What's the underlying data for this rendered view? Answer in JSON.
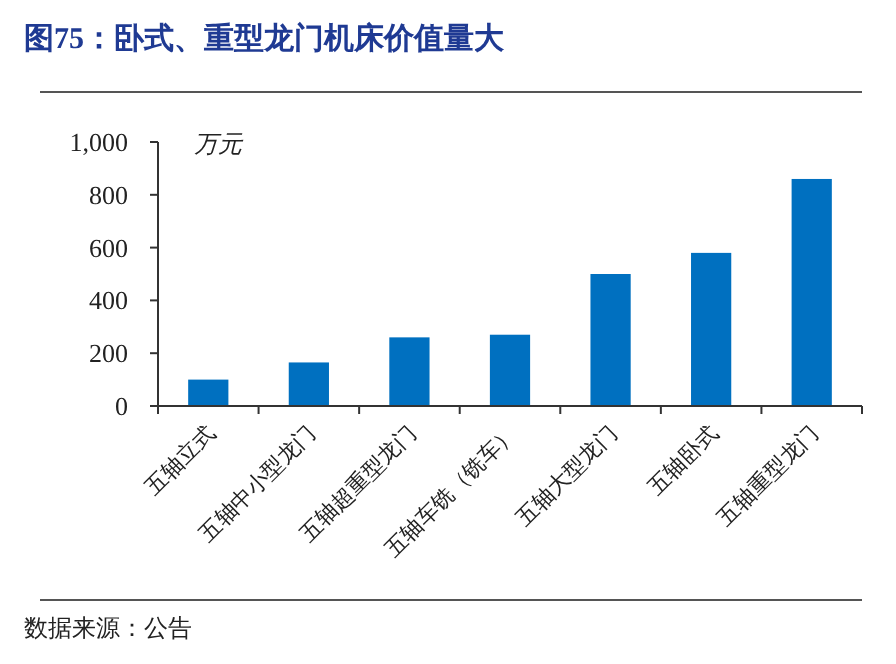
{
  "chart_data": {
    "type": "bar",
    "title": "图75：卧式、重型龙门机床价值量大",
    "ylabel": "万元",
    "categories": [
      "五轴立式",
      "五轴中小型龙门",
      "五轴超重型龙门",
      "五轴车铣（铣车）",
      "五轴大型龙门",
      "五轴卧式",
      "五轴重型龙门"
    ],
    "values": [
      100,
      165,
      260,
      270,
      500,
      580,
      860
    ],
    "color": "#0070c0",
    "ylim": [
      0,
      1000
    ],
    "yticks": [
      0,
      200,
      400,
      600,
      800,
      {
        "value": 1000,
        "label": "1,000"
      }
    ],
    "annotations": [
      "数据来源：公告"
    ]
  }
}
